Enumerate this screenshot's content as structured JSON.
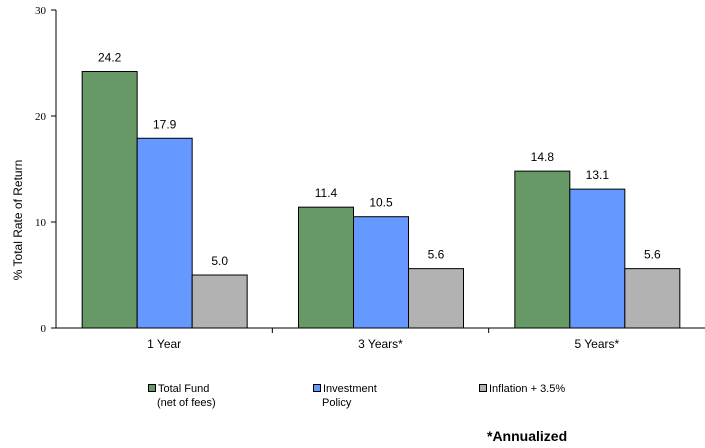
{
  "chart_data": {
    "type": "bar",
    "categories": [
      "1 Year",
      "3 Years*",
      "5 Years*"
    ],
    "series": [
      {
        "name": "Total Fund (net of fees)",
        "values": [
          24.2,
          11.4,
          14.8
        ],
        "labels": [
          "24.2",
          "11.4",
          "14.8"
        ],
        "color": "#669966"
      },
      {
        "name": "Investment Policy",
        "values": [
          17.9,
          10.5,
          13.1
        ],
        "labels": [
          "17.9",
          "10.5",
          "13.1"
        ],
        "color": "#6699ff"
      },
      {
        "name": "Inflation + 3.5%",
        "values": [
          5.0,
          5.6,
          5.6
        ],
        "labels": [
          "5.0",
          "5.6",
          "5.6"
        ],
        "color": "#b2b2b2"
      }
    ],
    "ylabel": "% Total Rate of Return",
    "ylim": [
      0,
      30
    ],
    "yticks": [
      "0",
      "10",
      "20",
      "30"
    ],
    "grid": false,
    "legend_position": "bottom"
  },
  "legend": {
    "item1_line1": "Total Fund",
    "item1_line2": "(net of fees)",
    "item2_line1": "Investment",
    "item2_line2": "Policy",
    "item3_line1": "Inflation + 3.5%"
  },
  "footnote": "*Annualized"
}
